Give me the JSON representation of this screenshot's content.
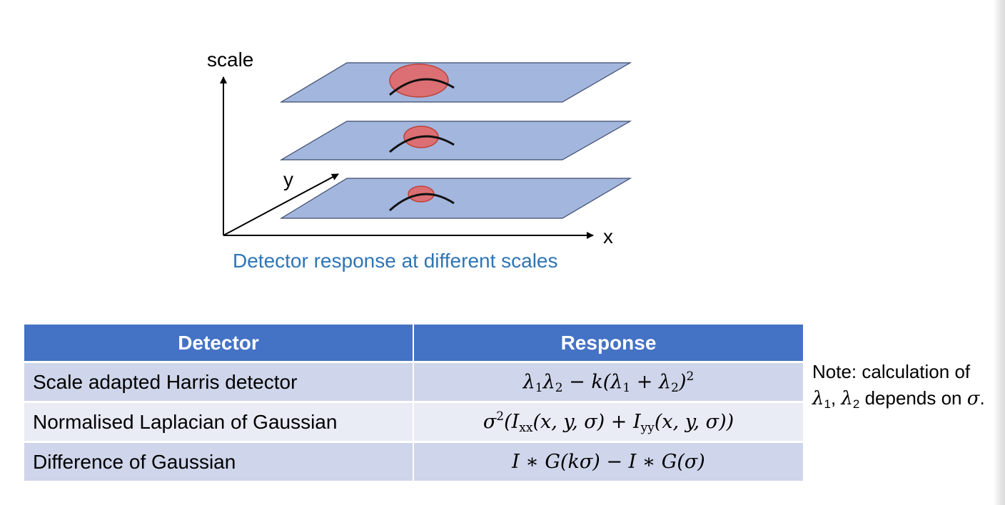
{
  "diagram": {
    "axis_labels": {
      "scale": "scale",
      "y": "y",
      "x": "x"
    },
    "caption": "Detector response at different scales",
    "layers": [
      {
        "level": "top",
        "blob": "large"
      },
      {
        "level": "middle",
        "blob": "medium"
      },
      {
        "level": "bottom",
        "blob": "small"
      }
    ],
    "colors": {
      "plane": "#a3b6de",
      "plane_edge": "#3b4a6b",
      "blob": "#e06a6a",
      "blob_edge": "#c0392b",
      "caption": "#2e75b6"
    }
  },
  "table": {
    "headers": {
      "detector": "Detector",
      "response": "Response"
    },
    "rows": [
      {
        "detector": "Scale adapted Harris detector",
        "response_parts": {
          "a": "λ",
          "a_sub": "1",
          "b": "λ",
          "b_sub": "2",
          "c": " − k(λ",
          "c_sub": "1",
          "d": " + λ",
          "d_sub": "2",
          "e": ")",
          "e_sup": "2"
        }
      },
      {
        "detector": "Normalised Laplacian of Gaussian",
        "response_parts": {
          "a": "σ",
          "a_sup": "2",
          "b": "(I",
          "b_sub": "xx",
          "c": "(x, y, σ) + I",
          "c_sub": "yy",
          "d": "(x, y, σ))"
        }
      },
      {
        "detector": "Difference of Gaussian",
        "response": "I ∗ G(kσ) − I ∗ G(σ)"
      }
    ],
    "colors": {
      "header": "#4472c4",
      "row_odd": "#cfd5ea",
      "row_even": "#e9ebf5"
    }
  },
  "note": {
    "line1": "Note: calculation of",
    "l1": "λ",
    "l1_sub": "1",
    "sep": ", ",
    "l2": "λ",
    "l2_sub": "2",
    "rest": " depends on ",
    "sigma": "σ",
    "end": "."
  }
}
